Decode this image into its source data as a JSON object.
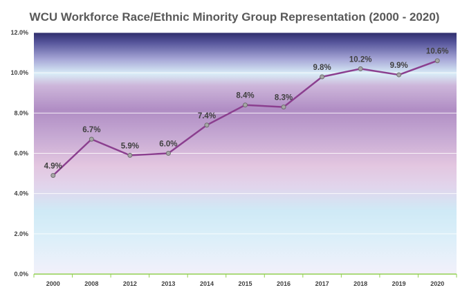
{
  "chart_data": {
    "type": "line",
    "title": "WCU Workforce Race/Ethnic Minority Group Representation (2000 - 2020)",
    "xlabel": "",
    "ylabel": "",
    "categories": [
      "2000",
      "2008",
      "2012",
      "2013",
      "2014",
      "2015",
      "2016",
      "2017",
      "2018",
      "2019",
      "2020"
    ],
    "series": [
      {
        "values": [
          4.9,
          6.7,
          5.9,
          6.0,
          7.4,
          8.4,
          8.3,
          9.8,
          10.2,
          9.9,
          10.6
        ],
        "data_labels": [
          "4.9%",
          "6.7%",
          "5.9%",
          "6.0%",
          "7.4%",
          "8.4%",
          "8.3%",
          "9.8%",
          "10.2%",
          "9.9%",
          "10.6%"
        ]
      }
    ],
    "ylim": [
      0,
      12
    ],
    "yticks": [
      0,
      2,
      4,
      6,
      8,
      10,
      12
    ],
    "ytick_labels": [
      "0.0%",
      "2.0%",
      "4.0%",
      "6.0%",
      "8.0%",
      "10.0%",
      "12.0%"
    ],
    "grid": true,
    "legend": "none",
    "colors": {
      "line": "#8B3F8F",
      "marker_fill": "#A6A6A6",
      "marker_stroke": "#6E6E6E",
      "baseline": "#92D050",
      "gridline": "#FFFFFF"
    }
  }
}
